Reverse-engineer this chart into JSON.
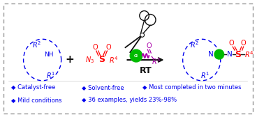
{
  "bg_color": "#ffffff",
  "border_color": "#999999",
  "blue": "#0000EE",
  "red": "#FF0000",
  "green": "#00BB00",
  "purple": "#AA00AA",
  "black": "#111111",
  "bullet_color": "#0000EE",
  "bullet_points_row1": [
    "Catalyst-free",
    "Solvent-free",
    "Most completed in two minutes"
  ],
  "bullet_points_row2": [
    "Mild conditions",
    "36 examples, yields 23%-98%"
  ],
  "rt_label": "RT",
  "fig_width": 3.78,
  "fig_height": 1.68,
  "dpi": 100
}
